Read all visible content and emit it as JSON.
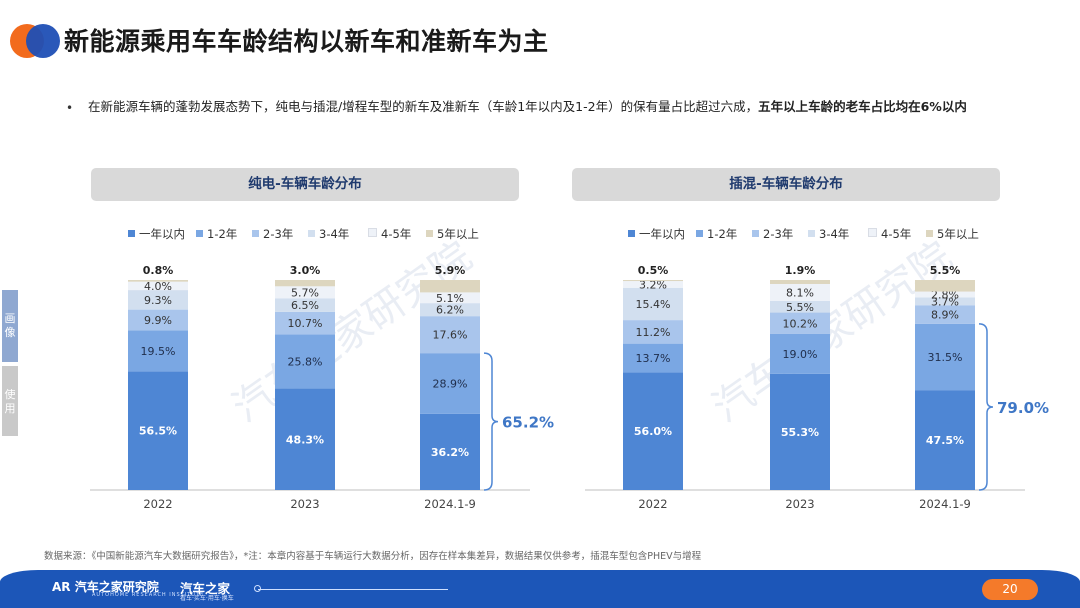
{
  "page": {
    "title": "新能源乘用车车龄结构以新车和准新车为主",
    "bullet_normal": "在新能源车辆的蓬勃发展态势下，纯电与插混/增程车型的新车及准新车（车龄1年以内及1-2年）的保有量占比超过六成，",
    "bullet_bold": "五年以上车龄的老车占比均在6%以内",
    "side_tab_1": "画像",
    "side_tab_2": "使用",
    "watermark": "汽车之家研究院",
    "source": "数据来源：《中国新能源汽车大数据研究报告》，*注：本章内容基于车辆运行大数据分析，因存在样本集差异，数据结果仅供参考，插混车型包含PHEV与增程",
    "footer_brand": "汽车之家研究院",
    "footer_brand_sub": "AUTOHOME RESEARCH INSTITUTE",
    "footer_brand2": "汽车之家",
    "footer_brand2_sub": "看车·买车·用车·换车",
    "page_number": "20"
  },
  "colors": [
    "#4e86d4",
    "#7aa7e3",
    "#a9c5ec",
    "#d2dfef",
    "#eef2f8",
    "#ddd6bf"
  ],
  "chart_data": [
    {
      "type": "bar",
      "stacked": true,
      "normalized": true,
      "title": "纯电-车辆车龄分布",
      "categories": [
        "2022",
        "2023",
        "2024.1-9"
      ],
      "series": [
        {
          "name": "一年以内",
          "values": [
            56.5,
            48.3,
            36.2
          ]
        },
        {
          "name": "1-2年",
          "values": [
            19.5,
            25.8,
            28.9
          ]
        },
        {
          "name": "2-3年",
          "values": [
            9.9,
            10.7,
            17.6
          ]
        },
        {
          "name": "3-4年",
          "values": [
            9.3,
            6.5,
            6.2
          ]
        },
        {
          "name": "4-5年",
          "values": [
            4.0,
            5.7,
            5.1
          ]
        },
        {
          "name": "5年以上",
          "values": [
            0.8,
            3.0,
            5.9
          ]
        }
      ],
      "bracket_label": "65.2%",
      "bracket_series": [
        0,
        1
      ],
      "bracket_category": 2,
      "legend_position": "top",
      "grid": false
    },
    {
      "type": "bar",
      "stacked": true,
      "normalized": true,
      "title": "插混-车辆车龄分布",
      "categories": [
        "2022",
        "2023",
        "2024.1-9"
      ],
      "series": [
        {
          "name": "一年以内",
          "values": [
            56.0,
            55.3,
            47.5
          ]
        },
        {
          "name": "1-2年",
          "values": [
            13.7,
            19.0,
            31.5
          ]
        },
        {
          "name": "2-3年",
          "values": [
            11.2,
            10.2,
            8.9
          ]
        },
        {
          "name": "3-4年",
          "values": [
            15.4,
            5.5,
            3.7
          ]
        },
        {
          "name": "4-5年",
          "values": [
            3.2,
            8.1,
            2.8
          ]
        },
        {
          "name": "5年以上",
          "values": [
            0.5,
            1.9,
            5.5
          ]
        }
      ],
      "bracket_label": "79.0%",
      "bracket_series": [
        0,
        1
      ],
      "bracket_category": 2,
      "legend_position": "top",
      "grid": false
    }
  ]
}
